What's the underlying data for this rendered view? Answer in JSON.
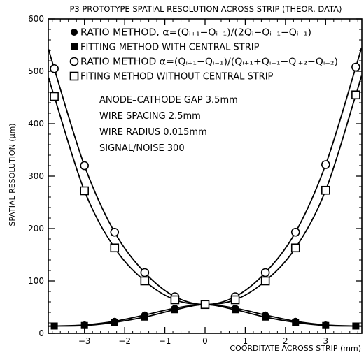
{
  "chart_data": {
    "type": "line",
    "title": "P3 PROTOTYPE SPATIAL RESOLUTION ACROSS STRIP (THEOR. DATA)",
    "xlabel": "COORDITATE ACROSS STRIP (mm)",
    "ylabel": "SPATIAL RESOLUTION (μm)",
    "xlim": [
      -3.9,
      3.9
    ],
    "ylim": [
      0,
      600
    ],
    "xticks": [
      -3,
      -2,
      -1,
      0,
      1,
      2,
      3
    ],
    "xtick_labels": [
      "−3",
      "−2",
      "−1",
      "0",
      "1",
      "2",
      "3"
    ],
    "yticks": [
      0,
      100,
      200,
      300,
      400,
      500,
      600
    ],
    "ytick_labels": [
      "0",
      "100",
      "200",
      "300",
      "400",
      "500",
      "600"
    ],
    "grid": false,
    "legend_position": "top-left",
    "x": [
      -3.75,
      -3.0,
      -2.25,
      -1.5,
      -0.75,
      0,
      0.75,
      1.5,
      2.25,
      3.0,
      3.75
    ],
    "series": [
      {
        "name": "RATIO METHOD, α=(Qᵢ₊₁−Qᵢ₋₁)/(2Qᵢ−Qᵢ₊₁−Qᵢ₋₁)",
        "marker": "filled-circle",
        "values": [
          14,
          16,
          23,
          35,
          48,
          55,
          48,
          35,
          23,
          16,
          14
        ]
      },
      {
        "name": "FITTING METHOD WITH CENTRAL STRIP",
        "marker": "filled-square",
        "values": [
          14,
          15,
          21,
          31,
          45,
          55,
          45,
          31,
          21,
          15,
          14
        ]
      },
      {
        "name": "RATIO METHOD α=(Qᵢ₊₁−Qᵢ₋₁)/(Qᵢ₊₁+Qᵢ₋₁−Qᵢ₊₂−Qᵢ₋₂)",
        "marker": "open-circle",
        "values": [
          505,
          320,
          193,
          116,
          70,
          55,
          70,
          116,
          193,
          322,
          508
        ]
      },
      {
        "name": "FITING METHOD WITHOUT CENTRAL STRIP",
        "marker": "open-square",
        "values": [
          452,
          272,
          163,
          100,
          64,
          55,
          64,
          100,
          163,
          273,
          455
        ]
      }
    ],
    "annotations": [
      "ANODE–CATHODE GAP 3.5mm",
      "WIRE SPACING 2.5mm",
      "WIRE RADIUS 0.015mm",
      "SIGNAL/NOISE 300"
    ]
  }
}
